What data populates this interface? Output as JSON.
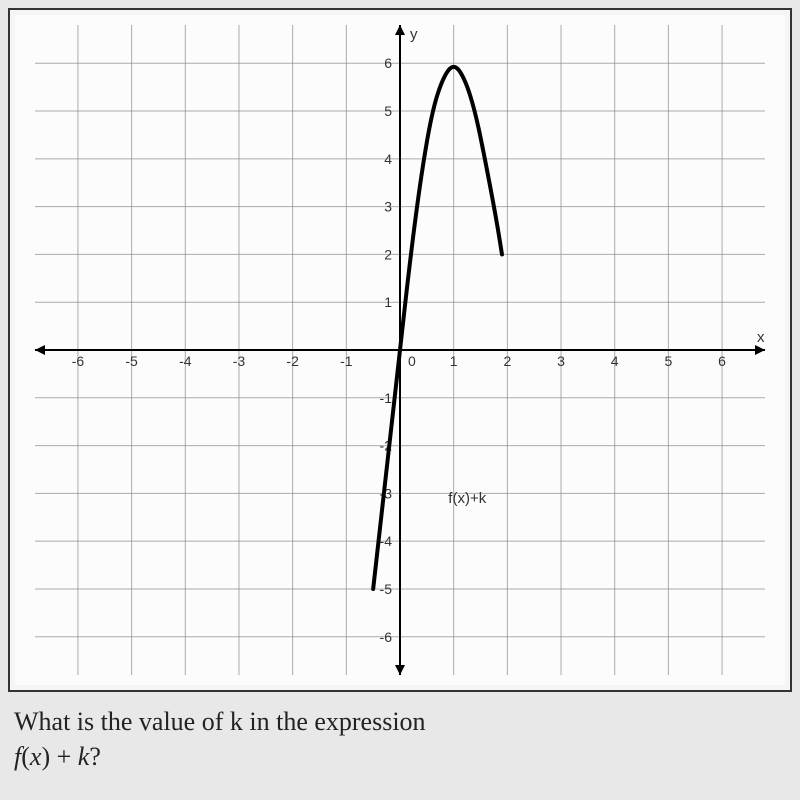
{
  "chart": {
    "type": "line",
    "xlim": [
      -6.8,
      6.8
    ],
    "ylim": [
      -6.8,
      6.8
    ],
    "x_ticks": [
      -6,
      -5,
      -4,
      -3,
      -2,
      -1,
      1,
      2,
      3,
      4,
      5,
      6
    ],
    "y_ticks": [
      -6,
      -5,
      -4,
      -3,
      -2,
      -1,
      1,
      2,
      3,
      4,
      5,
      6
    ],
    "x_tick_labels": [
      "-6",
      "-5",
      "-4",
      "-3",
      "-2",
      "-1",
      "1",
      "2",
      "3",
      "4",
      "5",
      "6"
    ],
    "y_tick_labels": [
      "-6",
      "-5",
      "-4",
      "-3",
      "-2",
      "-1",
      "1",
      "2",
      "3",
      "4",
      "5",
      "6"
    ],
    "y_axis_label": "y",
    "x_axis_label": "x",
    "grid_color": "#888888",
    "axis_color": "#000000",
    "background_color": "#fcfcfc",
    "tick_fontsize": 14,
    "curve": {
      "label": "f(x)+k",
      "label_pos": {
        "x": 0.9,
        "y": -3.2
      },
      "color": "#000000",
      "width": 4,
      "points": [
        {
          "x": -0.5,
          "y": -5.0
        },
        {
          "x": -0.35,
          "y": -3.5
        },
        {
          "x": -0.2,
          "y": -2.0
        },
        {
          "x": 0.0,
          "y": 0.0
        },
        {
          "x": 0.2,
          "y": 2.0
        },
        {
          "x": 0.4,
          "y": 3.7
        },
        {
          "x": 0.6,
          "y": 5.0
        },
        {
          "x": 0.8,
          "y": 5.7
        },
        {
          "x": 1.0,
          "y": 6.0
        },
        {
          "x": 1.2,
          "y": 5.7
        },
        {
          "x": 1.4,
          "y": 5.0
        },
        {
          "x": 1.6,
          "y": 3.9
        },
        {
          "x": 1.8,
          "y": 2.7
        },
        {
          "x": 1.9,
          "y": 2.0
        }
      ]
    }
  },
  "question_line1": "What is the value of k in the expression",
  "question_line2_prefix": "f",
  "question_line2_paren_open": "(",
  "question_line2_x": "x",
  "question_line2_paren_close": ") + ",
  "question_line2_k": "k",
  "question_line2_q": "?"
}
